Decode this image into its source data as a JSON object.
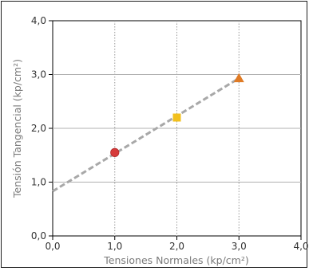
{
  "chart_data": {
    "type": "scatter",
    "xlabel": "Tensiones Normales (kp/cm²)",
    "ylabel": "Tensión Tangencial (kp/cm²)",
    "xlim": [
      0,
      4
    ],
    "ylim": [
      0,
      4
    ],
    "x_ticks": [
      "0,0",
      "1,0",
      "2,0",
      "3,0",
      "4,0"
    ],
    "y_ticks": [
      "0,0",
      "1,0",
      "2,0",
      "3,0",
      "4,0"
    ],
    "grid": "vertical dotted at x = 1, 2, 3; horizontal solid at y = 1, 2, 3",
    "points": [
      {
        "x": 1.0,
        "y": 1.55,
        "marker": "circle",
        "color": "#d63a3a"
      },
      {
        "x": 2.0,
        "y": 2.2,
        "marker": "square",
        "color": "#f2c01d"
      },
      {
        "x": 3.0,
        "y": 2.93,
        "marker": "triangle",
        "color": "#e07b25"
      }
    ],
    "trendline": {
      "style": "dashed",
      "color": "#a8a8a8",
      "from": {
        "x": 0.0,
        "y": 0.83
      },
      "to": {
        "x": 3.0,
        "y": 2.93
      }
    }
  }
}
